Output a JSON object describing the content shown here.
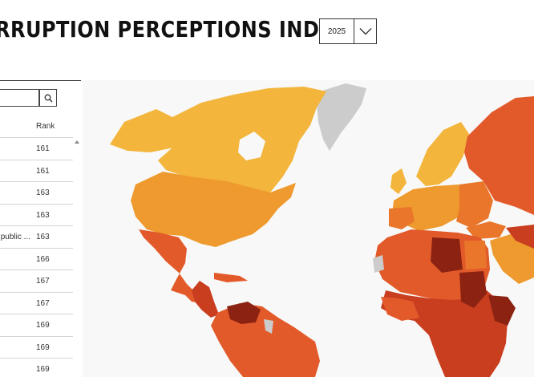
{
  "header": {
    "title": "RRUPTION PERCEPTIONS INDEX",
    "year_selected": "2025",
    "year_dropdown_icon": "chevron-down-icon"
  },
  "sidebar": {
    "search": {
      "value": "",
      "placeholder": "",
      "icon": "search-icon"
    },
    "column_header_rank": "Rank",
    "sort_icon": "sort-ascending-icon",
    "rows": [
      {
        "country": "",
        "rank": "161"
      },
      {
        "country": "",
        "rank": "161"
      },
      {
        "country": "",
        "rank": "163"
      },
      {
        "country": "",
        "rank": "163"
      },
      {
        "country": "public ...",
        "rank": "163"
      },
      {
        "country": "",
        "rank": "166"
      },
      {
        "country": "",
        "rank": "167"
      },
      {
        "country": "",
        "rank": "167"
      },
      {
        "country": "",
        "rank": "169"
      },
      {
        "country": "",
        "rank": "169"
      },
      {
        "country": "",
        "rank": "169"
      }
    ]
  },
  "map": {
    "colors": {
      "ocean": "#f8f8f8",
      "no_data": "#cccccc",
      "high": "#f3b53c",
      "upper_mid": "#ee9a2e",
      "mid": "#e9762b",
      "lower_mid": "#e35a2a",
      "low": "#c93e1f",
      "very_low": "#8c2312"
    }
  }
}
